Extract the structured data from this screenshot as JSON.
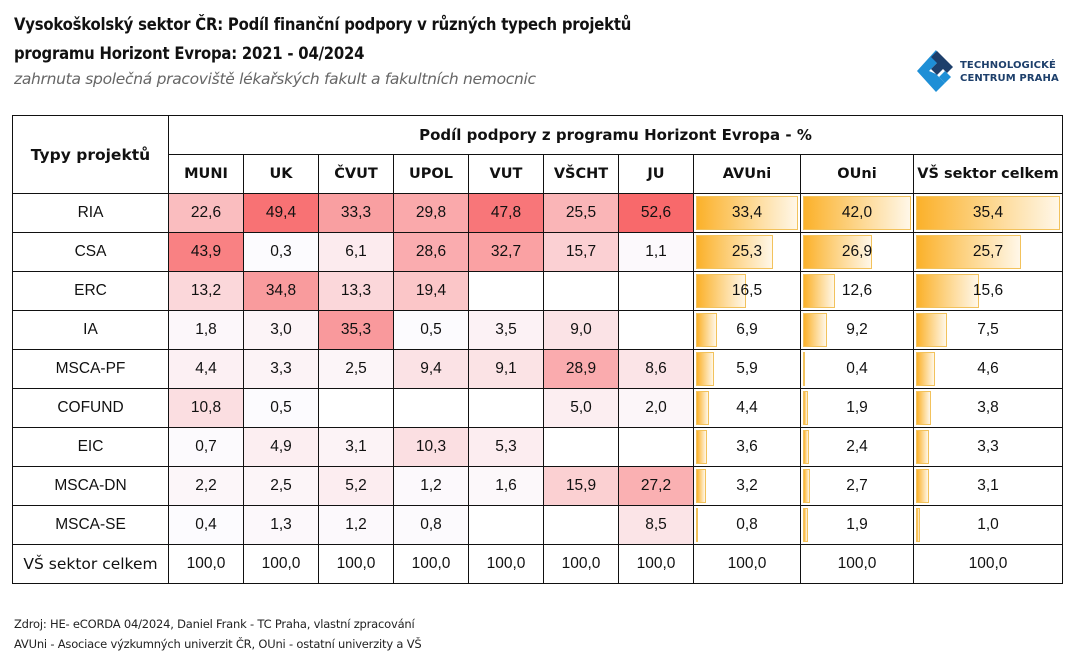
{
  "title_line1": "Vysokoškolský sektor ČR: Podíl finanční podpory v různých typech projektů",
  "title_line2": "programu Horizont Evropa: 2021 - 04/2024",
  "subtitle": "zahrnuta společná pracoviště lékařských fakult a fakultních nemocnic",
  "logo": {
    "icon": "tc-praha-logo-icon",
    "line1": "TECHNOLOGICKÉ",
    "line2": "CENTRUM PRAHA",
    "color": "#1d3f6b",
    "accent": "#1e8fd6"
  },
  "footer": {
    "source": "Zdroj: HE- eCORDA 04/2024, Daniel Frank - TC Praha, vlastní zpracování",
    "note": "AVUni - Asociace výzkumných univerzit ČR, OUni - ostatní univerzity a VŠ"
  },
  "colors": {
    "heat_max": "#f8696b",
    "heat_min": "#fcfcff",
    "bar_start": "#fbb12a",
    "bar_border": "#f2c25c"
  },
  "chart_data": {
    "type": "table",
    "title": "Vysokoškolský sektor ČR: Podíl finanční podpory v různých typech projektů programu Horizont Evropa: 2021 - 04/2024",
    "row_header_label": "Typy projektů",
    "column_group_label": "Podíl podpory z programu Horizont Evropa - %",
    "heatmap_columns": [
      "MUNI",
      "UK",
      "ČVUT",
      "UPOL",
      "VUT",
      "VŠCHT",
      "JU"
    ],
    "databar_columns": [
      "AVUni",
      "OUni",
      "VŠ sektor celkem"
    ],
    "columns": [
      "MUNI",
      "UK",
      "ČVUT",
      "UPOL",
      "VUT",
      "VŠCHT",
      "JU",
      "AVUni",
      "OUni",
      "VŠ sektor celkem"
    ],
    "rows": [
      {
        "label": "RIA",
        "values": [
          "22,6",
          "49,4",
          "33,3",
          "29,8",
          "47,8",
          "25,5",
          "52,6",
          "33,4",
          "42,0",
          "35,4"
        ]
      },
      {
        "label": "CSA",
        "values": [
          "43,9",
          "0,3",
          "6,1",
          "28,6",
          "32,7",
          "15,7",
          "1,1",
          "25,3",
          "26,9",
          "25,7"
        ]
      },
      {
        "label": "ERC",
        "values": [
          "13,2",
          "34,8",
          "13,3",
          "19,4",
          "",
          "",
          "",
          "16,5",
          "12,6",
          "15,6"
        ]
      },
      {
        "label": "IA",
        "values": [
          "1,8",
          "3,0",
          "35,3",
          "0,5",
          "3,5",
          "9,0",
          "",
          "6,9",
          "9,2",
          "7,5"
        ]
      },
      {
        "label": "MSCA-PF",
        "values": [
          "4,4",
          "3,3",
          "2,5",
          "9,4",
          "9,1",
          "28,9",
          "8,6",
          "5,9",
          "0,4",
          "4,6"
        ]
      },
      {
        "label": "COFUND",
        "values": [
          "10,8",
          "0,5",
          "",
          "",
          "",
          "5,0",
          "2,0",
          "4,4",
          "1,9",
          "3,8"
        ]
      },
      {
        "label": "EIC",
        "values": [
          "0,7",
          "4,9",
          "3,1",
          "10,3",
          "5,3",
          "",
          "",
          "3,6",
          "2,4",
          "3,3"
        ]
      },
      {
        "label": "MSCA-DN",
        "values": [
          "2,2",
          "2,5",
          "5,2",
          "1,2",
          "1,6",
          "15,9",
          "27,2",
          "3,2",
          "2,7",
          "3,1"
        ]
      },
      {
        "label": "MSCA-SE",
        "values": [
          "0,4",
          "1,3",
          "1,2",
          "0,8",
          "",
          "",
          "8,5",
          "0,8",
          "1,9",
          "1,0"
        ]
      }
    ],
    "total_row": {
      "label": "VŠ sektor celkem",
      "values": [
        "100,0",
        "100,0",
        "100,0",
        "100,0",
        "100,0",
        "100,0",
        "100,0",
        "100,0",
        "100,0",
        "100,0"
      ]
    },
    "unit": "%"
  }
}
